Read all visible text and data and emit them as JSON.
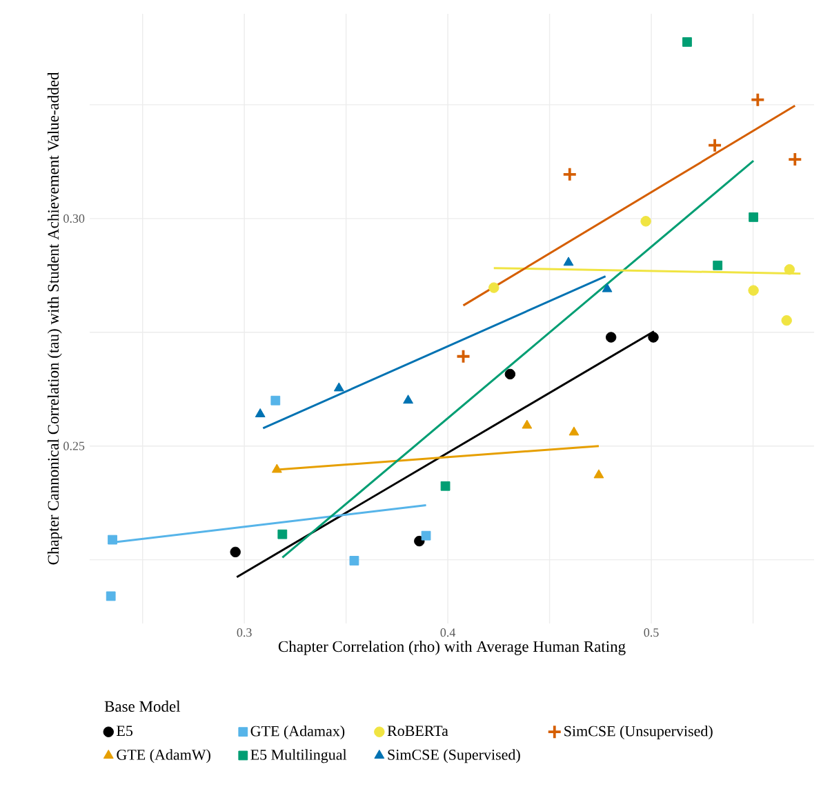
{
  "chart_data": {
    "type": "scatter",
    "xlabel": "Chapter Correlation (rho) with Average Human Rating",
    "ylabel": "Chapter Cannonical Correlation (tau) with Student Achievement Value-added",
    "legend_title": "Base Model",
    "legend": "bottom",
    "grid": true,
    "xlim": [
      0.224,
      0.58
    ],
    "ylim": [
      0.211,
      0.345
    ],
    "xticks": [
      {
        "value": 0.25,
        "label": null
      },
      0.3,
      {
        "value": 0.35,
        "label": null
      },
      0.4,
      {
        "value": 0.45,
        "label": null
      },
      0.5,
      {
        "value": 0.55,
        "label": null
      }
    ],
    "yticks": [
      {
        "value": 0.225,
        "label": null
      },
      0.25,
      {
        "value": 0.275,
        "label": null
      },
      {
        "value": 0.3,
        "label": "0.30"
      },
      {
        "value": 0.325,
        "label": null
      }
    ],
    "series": [
      {
        "name": "E5",
        "color": "#000000",
        "marker": "circle",
        "x": [
          0.2956,
          0.386,
          0.4306,
          0.4802,
          0.501
        ],
        "values": [
          0.2267,
          0.2291,
          0.2658,
          0.2739,
          0.2739
        ]
      },
      {
        "name": "GTE (AdamW)",
        "color": "#e69f00",
        "marker": "triangle",
        "x": [
          0.316,
          0.4389,
          0.462,
          0.4742
        ],
        "values": [
          0.2448,
          0.2545,
          0.253,
          0.2436
        ]
      },
      {
        "name": "GTE (Adamax)",
        "color": "#56b4e9",
        "marker": "square",
        "x": [
          0.2352,
          0.2344,
          0.3153,
          0.354,
          0.3893
        ],
        "values": [
          0.2294,
          0.217,
          0.26,
          0.2248,
          0.2303
        ]
      },
      {
        "name": "E5 Multilingual",
        "color": "#009e73",
        "marker": "square",
        "x": [
          0.3187,
          0.3988,
          0.5176,
          0.5326,
          0.5502
        ],
        "values": [
          0.2306,
          0.2412,
          0.3388,
          0.2897,
          0.3003
        ]
      },
      {
        "name": "RoBERTa",
        "color": "#f0e442",
        "marker": "circle",
        "x": [
          0.4226,
          0.4973,
          0.5502,
          0.5679,
          0.5665
        ],
        "values": [
          0.2848,
          0.2994,
          0.2842,
          0.2888,
          0.2776
        ]
      },
      {
        "name": "SimCSE (Supervised)",
        "color": "#0072b2",
        "marker": "triangle",
        "x": [
          0.3078,
          0.3465,
          0.3805,
          0.4593,
          0.4783
        ],
        "values": [
          0.257,
          0.2627,
          0.26,
          0.2903,
          0.2845
        ]
      },
      {
        "name": "SimCSE (Unsupervised)",
        "color": "#d55e00",
        "marker": "cross",
        "x": [
          0.4076,
          0.4599,
          0.5312,
          0.5523,
          0.5706
        ],
        "values": [
          0.2697,
          0.3097,
          0.3161,
          0.3261,
          0.313
        ]
      },
      {
        "type": "line",
        "color": "#000000",
        "x": [
          0.2963,
          0.5013
        ],
        "values": [
          0.2212,
          0.2752
        ]
      },
      {
        "type": "line",
        "color": "#e69f00",
        "x": [
          0.316,
          0.4742
        ],
        "values": [
          0.2448,
          0.25
        ]
      },
      {
        "type": "line",
        "color": "#56b4e9",
        "x": [
          0.2352,
          0.3893
        ],
        "values": [
          0.2288,
          0.237
        ]
      },
      {
        "type": "line",
        "color": "#009e73",
        "x": [
          0.3187,
          0.5502
        ],
        "values": [
          0.2255,
          0.3127
        ]
      },
      {
        "type": "line",
        "color": "#f0e442",
        "x": [
          0.4226,
          0.5733
        ],
        "values": [
          0.2891,
          0.2879
        ]
      },
      {
        "type": "line",
        "color": "#0072b2",
        "x": [
          0.3092,
          0.4775
        ],
        "values": [
          0.2539,
          0.2873
        ]
      },
      {
        "type": "line",
        "color": "#d55e00",
        "x": [
          0.4076,
          0.5706
        ],
        "values": [
          0.2809,
          0.3248
        ]
      }
    ]
  }
}
